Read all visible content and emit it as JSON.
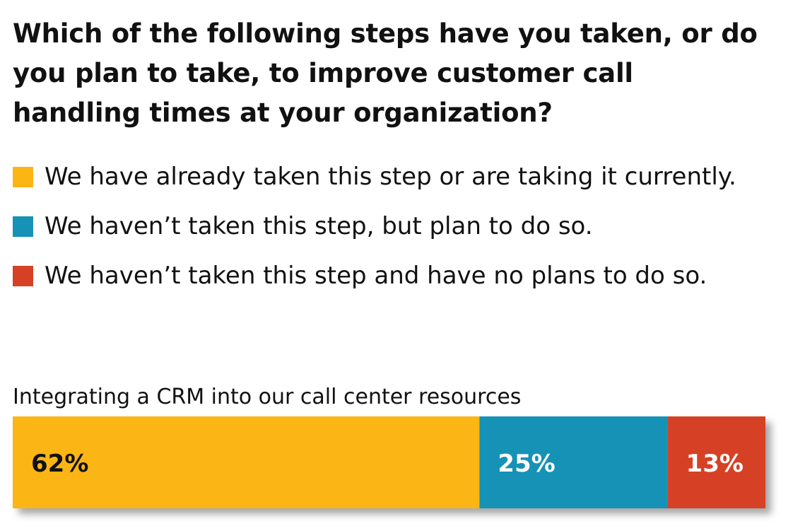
{
  "chart_data": {
    "type": "bar",
    "orientation": "horizontal-stacked-100",
    "title": "Which of the following steps have you taken, or do you plan to take, to improve customer call handling times at your organization?",
    "legend_position": "top-left",
    "categories": [
      "Integrating a CRM into our call center resources"
    ],
    "series": [
      {
        "name": "We have already taken this step or are taking it currently.",
        "values": [
          62
        ],
        "labels": [
          "62%"
        ],
        "color": "#FBB515",
        "label_color": "#111111"
      },
      {
        "name": "We haven’t taken this step, but plan to do so.",
        "values": [
          25
        ],
        "labels": [
          "25%"
        ],
        "color": "#1592B5",
        "label_color": "#ffffff"
      },
      {
        "name": "We haven’t taken this step and have no plans to do so.",
        "values": [
          13
        ],
        "labels": [
          "13%"
        ],
        "color": "#D64126",
        "label_color": "#ffffff"
      }
    ],
    "xlim": [
      0,
      100
    ],
    "grid": false
  }
}
